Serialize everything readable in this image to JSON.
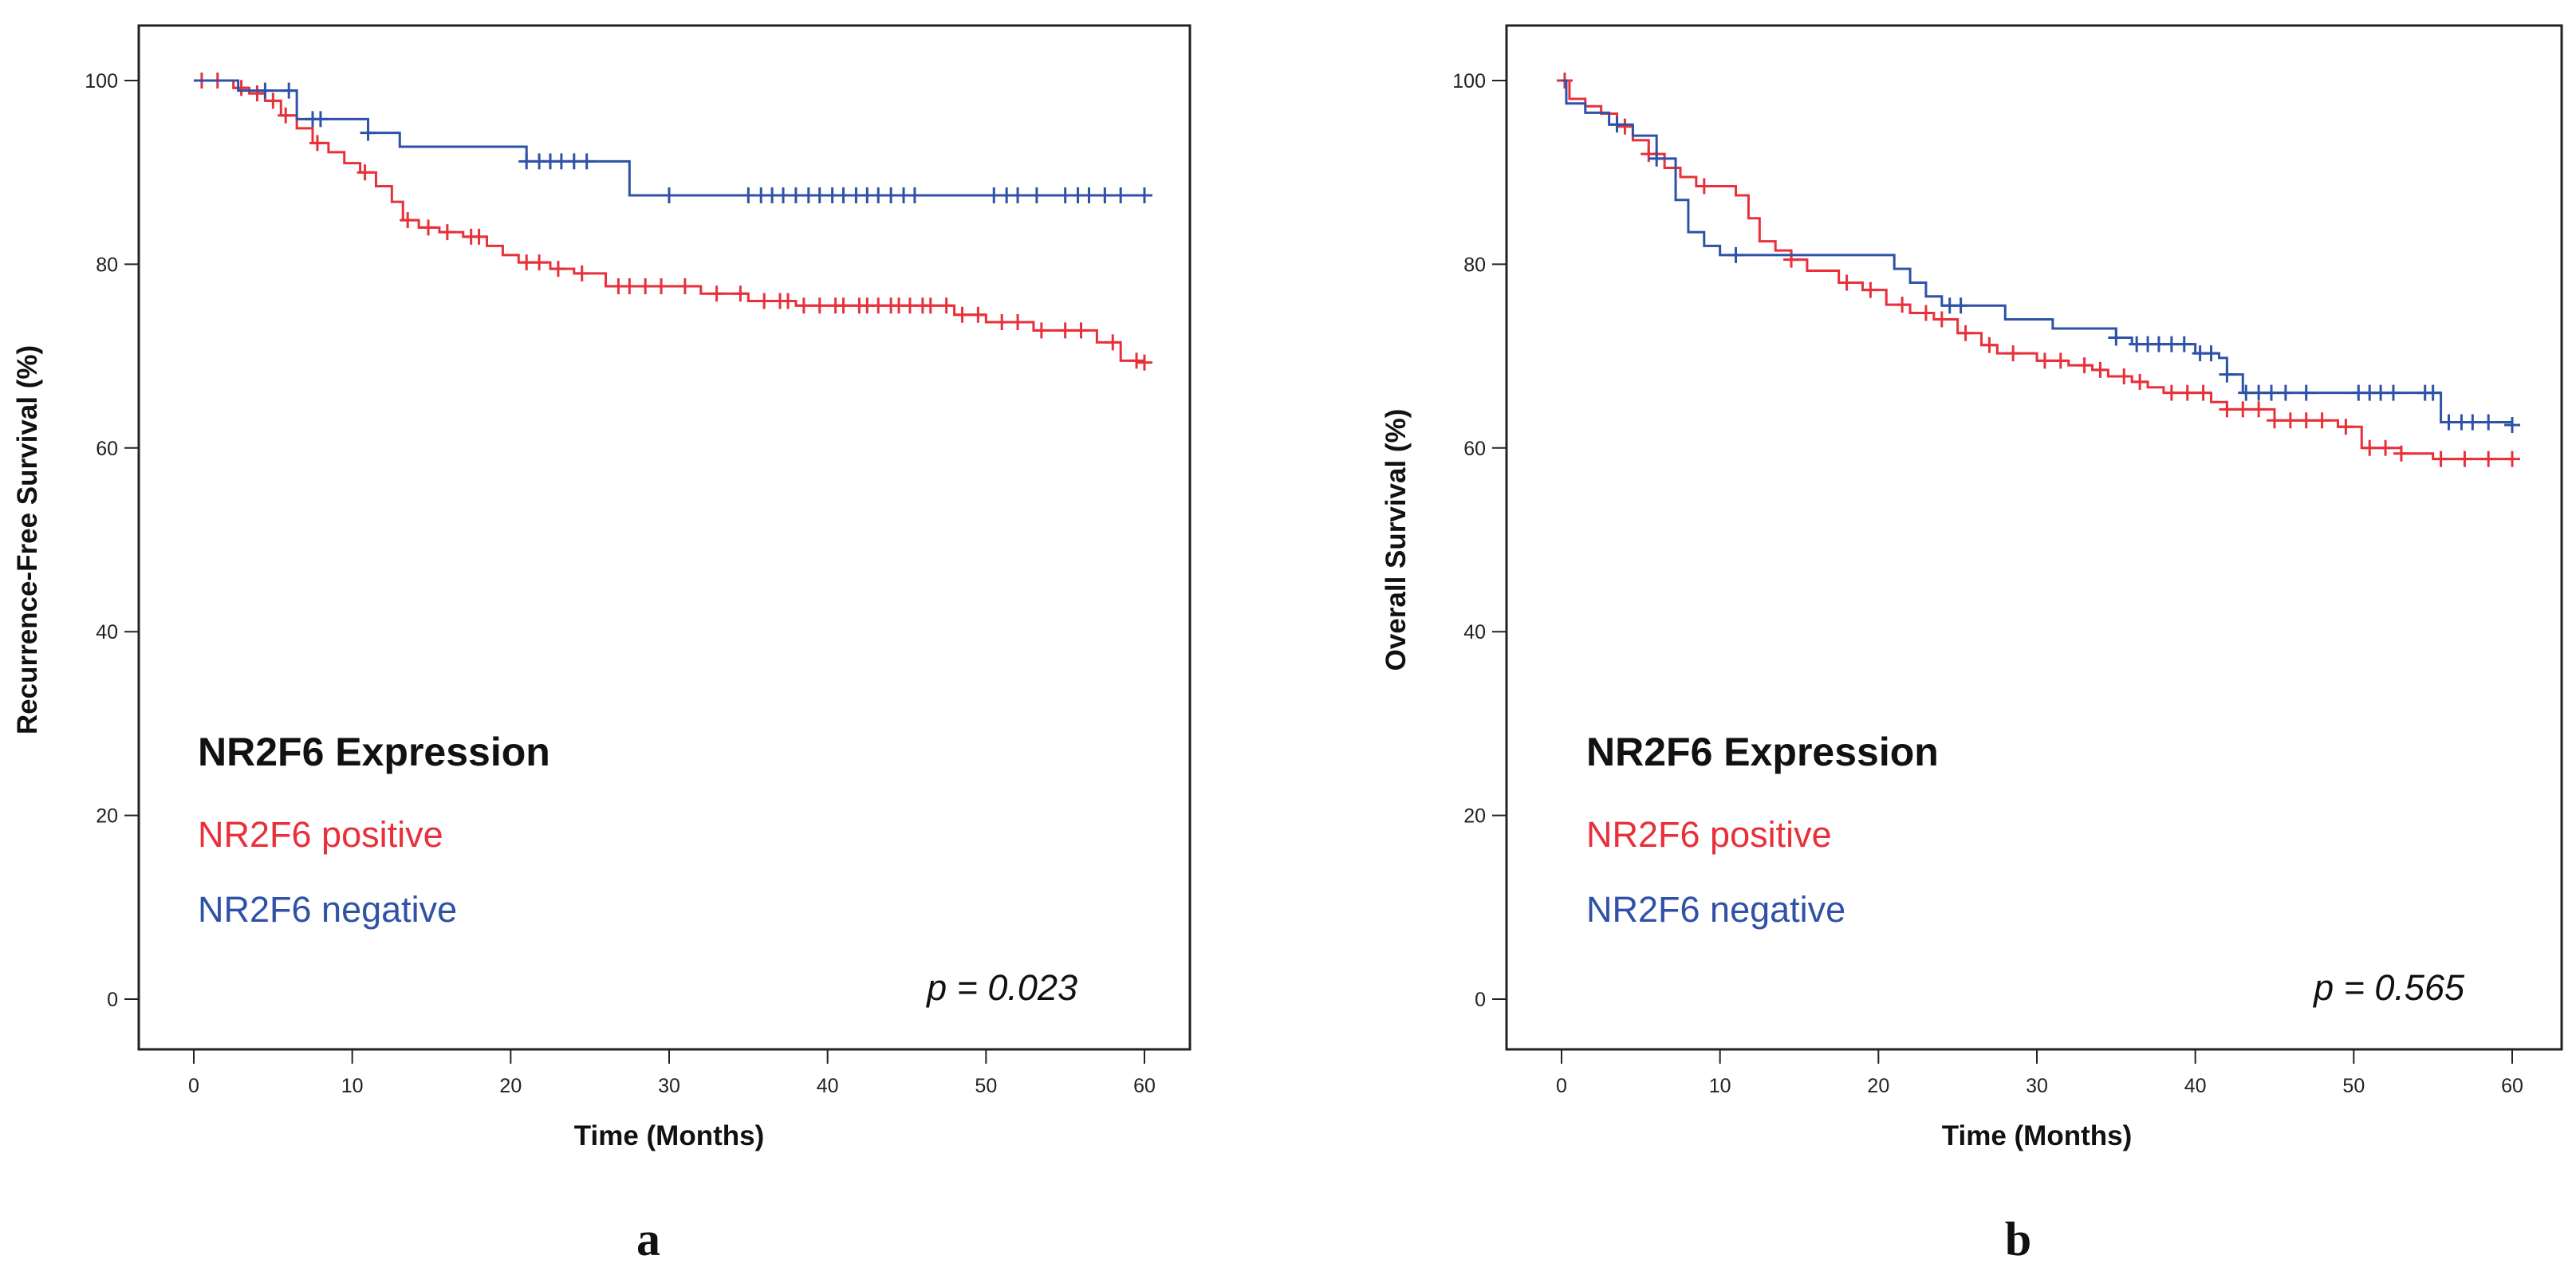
{
  "chart_data": [
    {
      "type": "line",
      "panel_label": "a",
      "xlabel": "Time (Months)",
      "ylabel": "Recurrence-Free Survival (%)",
      "xlim": [
        0,
        60
      ],
      "ylim": [
        0,
        100
      ],
      "xticks": [
        0,
        10,
        20,
        30,
        40,
        50,
        60
      ],
      "yticks": [
        0,
        20,
        40,
        60,
        80,
        100
      ],
      "legend_title": "NR2F6 Expression",
      "legend_placement": "lower-left",
      "p_value_text": "p = 0.023",
      "series": [
        {
          "name": "NR2F6 positive",
          "color": "#e8303a",
          "steps": [
            [
              0,
              100
            ],
            [
              2.5,
              99.2
            ],
            [
              3.5,
              98.6
            ],
            [
              4.5,
              97.8
            ],
            [
              5.5,
              96.2
            ],
            [
              6.5,
              94.8
            ],
            [
              7.5,
              93.2
            ],
            [
              8.5,
              92.2
            ],
            [
              9.5,
              91
            ],
            [
              10.5,
              90
            ],
            [
              11.5,
              88.5
            ],
            [
              12.5,
              86.8
            ],
            [
              13.2,
              84.8
            ],
            [
              14.2,
              84
            ],
            [
              15.5,
              83.5
            ],
            [
              17,
              83
            ],
            [
              18.5,
              82
            ],
            [
              19.5,
              81
            ],
            [
              20.5,
              80.2
            ],
            [
              22.5,
              79.5
            ],
            [
              24,
              79
            ],
            [
              26,
              77.6
            ],
            [
              32,
              76.8
            ],
            [
              35,
              76
            ],
            [
              38,
              75.5
            ],
            [
              48,
              74.5
            ],
            [
              50,
              73.7
            ],
            [
              53,
              72.8
            ],
            [
              57,
              71.5
            ],
            [
              58.5,
              69.5
            ],
            [
              60,
              69.3
            ]
          ],
          "censors": [
            0.5,
            1.5,
            3,
            4,
            5,
            5.8,
            7.8,
            10.8,
            13.5,
            14.8,
            16,
            17.5,
            18,
            21,
            21.8,
            23,
            24.5,
            26.8,
            27.5,
            28.5,
            29.5,
            31,
            33,
            34.5,
            36,
            37,
            37.5,
            38.5,
            39.5,
            40.5,
            41,
            42,
            42.5,
            43.2,
            44,
            44.5,
            45.2,
            46,
            46.5,
            47.5,
            48.5,
            49.5,
            51,
            52,
            53.5,
            55,
            56,
            58,
            59.5,
            60
          ]
        },
        {
          "name": "NR2F6 negative",
          "color": "#2f51a6",
          "steps": [
            [
              0,
              100
            ],
            [
              2.8,
              98.9
            ],
            [
              6.5,
              95.8
            ],
            [
              11,
              94.3
            ],
            [
              13,
              92.8
            ],
            [
              21,
              91.2
            ],
            [
              27.5,
              87.5
            ],
            [
              60,
              87.5
            ]
          ],
          "censors": [
            4.5,
            6,
            7.5,
            8,
            11,
            21,
            21.8,
            22.5,
            23.2,
            24,
            24.8,
            30,
            35,
            35.8,
            36.5,
            37.2,
            38,
            38.8,
            39.5,
            40.3,
            41,
            41.8,
            42.5,
            43.2,
            44,
            44.8,
            45.5,
            50.5,
            51.3,
            52,
            53.2,
            55,
            55.8,
            56.5,
            57.5,
            58.5,
            60
          ]
        }
      ]
    },
    {
      "type": "line",
      "panel_label": "b",
      "xlabel": "Time (Months)",
      "ylabel": "Overall Survival (%)",
      "xlim": [
        0,
        60
      ],
      "ylim": [
        0,
        100
      ],
      "xticks": [
        0,
        10,
        20,
        30,
        40,
        50,
        60
      ],
      "yticks": [
        0,
        20,
        40,
        60,
        80,
        100
      ],
      "legend_title": "NR2F6 Expression",
      "legend_placement": "lower-left",
      "p_value_text": "p = 0.565",
      "series": [
        {
          "name": "NR2F6 positive",
          "color": "#e8303a",
          "steps": [
            [
              0,
              100
            ],
            [
              0.5,
              98
            ],
            [
              1.5,
              97.2
            ],
            [
              2.5,
              96.4
            ],
            [
              3.5,
              95
            ],
            [
              4.5,
              93.5
            ],
            [
              5.5,
              92
            ],
            [
              6.5,
              90.5
            ],
            [
              7.5,
              89.5
            ],
            [
              8.5,
              88.5
            ],
            [
              11,
              87.5
            ],
            [
              11.8,
              85
            ],
            [
              12.5,
              82.5
            ],
            [
              13.5,
              81.5
            ],
            [
              14.5,
              80.5
            ],
            [
              15.5,
              79.3
            ],
            [
              17.5,
              78
            ],
            [
              19,
              77.2
            ],
            [
              20.5,
              75.6
            ],
            [
              22,
              74.7
            ],
            [
              23.5,
              74
            ],
            [
              25,
              72.5
            ],
            [
              26.5,
              71.2
            ],
            [
              27.5,
              70.3
            ],
            [
              30,
              69.5
            ],
            [
              32,
              69
            ],
            [
              33.5,
              68.5
            ],
            [
              34.5,
              67.8
            ],
            [
              36,
              67.2
            ],
            [
              37,
              66.6
            ],
            [
              38,
              66
            ],
            [
              41,
              65
            ],
            [
              42,
              64.2
            ],
            [
              45,
              63
            ],
            [
              49,
              62.3
            ],
            [
              50.5,
              60
            ],
            [
              53,
              59.4
            ],
            [
              55,
              58.8
            ],
            [
              60,
              58.8
            ]
          ],
          "censors": [
            0.2,
            4,
            5.5,
            9,
            14.5,
            18,
            19.5,
            21.5,
            23,
            24,
            25.5,
            27,
            28.5,
            30.5,
            31.5,
            33,
            34,
            35.5,
            36.5,
            38.5,
            39.5,
            40.5,
            42,
            43,
            44,
            45,
            46,
            47,
            48,
            49.5,
            51,
            52,
            53,
            55.5,
            57,
            58.5,
            60
          ]
        },
        {
          "name": "NR2F6 negative",
          "color": "#2f51a6",
          "steps": [
            [
              0,
              100
            ],
            [
              0.3,
              97.5
            ],
            [
              1.5,
              96.5
            ],
            [
              3,
              95.2
            ],
            [
              4.5,
              94
            ],
            [
              6,
              91.5
            ],
            [
              7.2,
              87
            ],
            [
              8,
              83.5
            ],
            [
              9,
              82
            ],
            [
              10,
              81
            ],
            [
              21,
              79.5
            ],
            [
              22,
              78
            ],
            [
              23,
              76.5
            ],
            [
              24,
              75.5
            ],
            [
              28,
              74
            ],
            [
              31,
              73
            ],
            [
              35,
              72
            ],
            [
              36,
              71.3
            ],
            [
              40,
              70.3
            ],
            [
              41.5,
              69.8
            ],
            [
              42,
              68
            ],
            [
              43,
              66
            ],
            [
              53,
              66
            ],
            [
              55.5,
              62.8
            ],
            [
              60,
              62.5
            ]
          ],
          "censors": [
            3.5,
            6,
            11,
            24.5,
            25.2,
            35,
            36.3,
            37,
            37.7,
            38.5,
            39.3,
            40.3,
            41,
            42,
            43.2,
            44,
            44.8,
            45.7,
            47,
            50.3,
            51,
            51.7,
            52.5,
            54.5,
            55,
            56,
            56.8,
            57.5,
            58.5,
            60
          ]
        }
      ]
    }
  ]
}
